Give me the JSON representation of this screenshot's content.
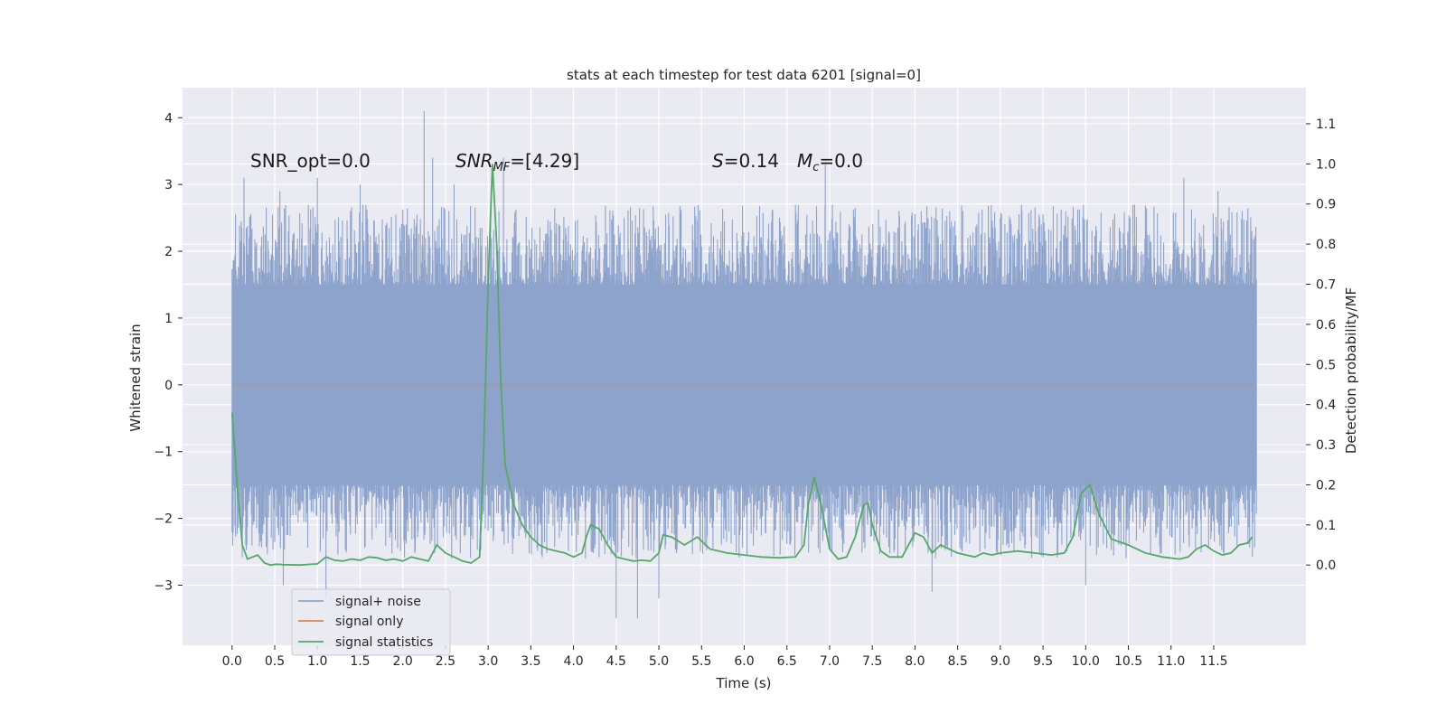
{
  "chart_data": {
    "type": "line",
    "title": "stats at each timestep for test data 6201 [signal=0]",
    "xlabel": "Time (s)",
    "ylabel_left": "Whitened strain",
    "ylabel_right": "Detection probability/MF",
    "xlim": [
      -0.58,
      12.58
    ],
    "ylim_left": [
      -3.9,
      4.45
    ],
    "ylim_right": [
      -0.2,
      1.19
    ],
    "x_ticks": [
      "0.0",
      "0.5",
      "1.0",
      "1.5",
      "2.0",
      "2.5",
      "3.0",
      "3.5",
      "4.0",
      "4.5",
      "5.0",
      "5.5",
      "6.0",
      "6.5",
      "7.0",
      "7.5",
      "8.0",
      "8.5",
      "9.0",
      "9.5",
      "10.0",
      "10.5",
      "11.0",
      "11.5"
    ],
    "y_ticks_left": [
      "−3",
      "−2",
      "−1",
      "0",
      "1",
      "2",
      "3",
      "4"
    ],
    "y_ticks_right": [
      "0.0",
      "0.1",
      "0.2",
      "0.3",
      "0.4",
      "0.5",
      "0.6",
      "0.7",
      "0.8",
      "0.9",
      "1.0",
      "1.1"
    ],
    "grid": true,
    "legend_placement": "lower-left",
    "annotations": {
      "snr_opt": "SNR_opt=0.0",
      "snr_mf_main": "SNR",
      "snr_mf_sub": "MF",
      "snr_mf_value": "=[4.29]",
      "s_symbol": "S",
      "s_value": "=0.14",
      "mc_main": "M",
      "mc_sub": "c",
      "mc_value": "=0.0"
    },
    "series": [
      {
        "name": "signal+ noise",
        "color": "#8ea3cb",
        "axis": "left",
        "x_range": [
          0.0,
          12.0
        ],
        "band": {
          "core_low": -1.5,
          "core_high": 1.5,
          "typical_peak_high": 2.3,
          "typical_peak_low": -2.2
        },
        "notable_peaks": [
          {
            "x": 0.14,
            "y": 3.1
          },
          {
            "x": 0.56,
            "y": 2.9
          },
          {
            "x": 1.0,
            "y": 3.1
          },
          {
            "x": 1.5,
            "y": 3.0
          },
          {
            "x": 2.25,
            "y": 4.1
          },
          {
            "x": 2.35,
            "y": 3.4
          },
          {
            "x": 2.6,
            "y": 3.0
          },
          {
            "x": 3.18,
            "y": 3.4
          },
          {
            "x": 6.95,
            "y": 3.3
          },
          {
            "x": 11.15,
            "y": 3.1
          },
          {
            "x": 11.55,
            "y": 2.9
          },
          {
            "x": 0.6,
            "y": -3.0
          },
          {
            "x": 1.1,
            "y": -3.2
          },
          {
            "x": 4.5,
            "y": -3.5
          },
          {
            "x": 4.75,
            "y": -3.5
          },
          {
            "x": 5.0,
            "y": -3.2
          },
          {
            "x": 8.2,
            "y": -3.1
          },
          {
            "x": 10.0,
            "y": -3.0
          }
        ]
      },
      {
        "name": "signal only",
        "color": "#dd8452",
        "axis": "left",
        "x": [
          0.0,
          12.0
        ],
        "y": [
          0.0,
          0.0
        ]
      },
      {
        "name": "signal statistics",
        "color": "#55a868",
        "axis": "right",
        "x": [
          0.0,
          0.06,
          0.12,
          0.18,
          0.24,
          0.3,
          0.38,
          0.45,
          0.52,
          0.6,
          0.8,
          1.0,
          1.1,
          1.2,
          1.3,
          1.4,
          1.5,
          1.6,
          1.7,
          1.8,
          1.9,
          2.0,
          2.1,
          2.2,
          2.3,
          2.4,
          2.5,
          2.6,
          2.7,
          2.8,
          2.9,
          2.95,
          3.0,
          3.05,
          3.1,
          3.15,
          3.2,
          3.3,
          3.4,
          3.5,
          3.6,
          3.7,
          3.8,
          3.9,
          4.0,
          4.1,
          4.15,
          4.2,
          4.3,
          4.4,
          4.5,
          4.6,
          4.7,
          4.8,
          4.9,
          5.0,
          5.05,
          5.15,
          5.3,
          5.45,
          5.6,
          5.8,
          6.0,
          6.2,
          6.4,
          6.6,
          6.7,
          6.75,
          6.82,
          6.9,
          7.0,
          7.1,
          7.2,
          7.3,
          7.4,
          7.45,
          7.5,
          7.6,
          7.7,
          7.85,
          8.0,
          8.1,
          8.2,
          8.3,
          8.4,
          8.5,
          8.6,
          8.7,
          8.8,
          8.9,
          9.0,
          9.2,
          9.4,
          9.6,
          9.75,
          9.85,
          9.95,
          10.05,
          10.15,
          10.3,
          10.5,
          10.7,
          10.9,
          11.1,
          11.2,
          11.3,
          11.4,
          11.5,
          11.6,
          11.7,
          11.8,
          11.9,
          11.95
        ],
        "y": [
          0.38,
          0.2,
          0.05,
          0.015,
          0.02,
          0.025,
          0.005,
          0.0,
          0.002,
          0.001,
          0.0,
          0.003,
          0.02,
          0.012,
          0.01,
          0.015,
          0.012,
          0.02,
          0.018,
          0.012,
          0.015,
          0.01,
          0.02,
          0.015,
          0.01,
          0.05,
          0.03,
          0.02,
          0.01,
          0.005,
          0.02,
          0.3,
          0.7,
          1.0,
          0.8,
          0.45,
          0.25,
          0.15,
          0.1,
          0.07,
          0.05,
          0.04,
          0.035,
          0.03,
          0.02,
          0.03,
          0.07,
          0.1,
          0.09,
          0.05,
          0.02,
          0.015,
          0.01,
          0.012,
          0.01,
          0.03,
          0.075,
          0.07,
          0.05,
          0.07,
          0.04,
          0.03,
          0.025,
          0.02,
          0.018,
          0.02,
          0.05,
          0.15,
          0.22,
          0.15,
          0.04,
          0.015,
          0.02,
          0.07,
          0.15,
          0.155,
          0.1,
          0.035,
          0.02,
          0.02,
          0.08,
          0.07,
          0.03,
          0.05,
          0.04,
          0.03,
          0.025,
          0.02,
          0.03,
          0.025,
          0.03,
          0.035,
          0.03,
          0.025,
          0.03,
          0.07,
          0.18,
          0.2,
          0.13,
          0.065,
          0.05,
          0.03,
          0.02,
          0.015,
          0.02,
          0.04,
          0.05,
          0.035,
          0.025,
          0.03,
          0.05,
          0.055,
          0.07
        ]
      }
    ]
  }
}
